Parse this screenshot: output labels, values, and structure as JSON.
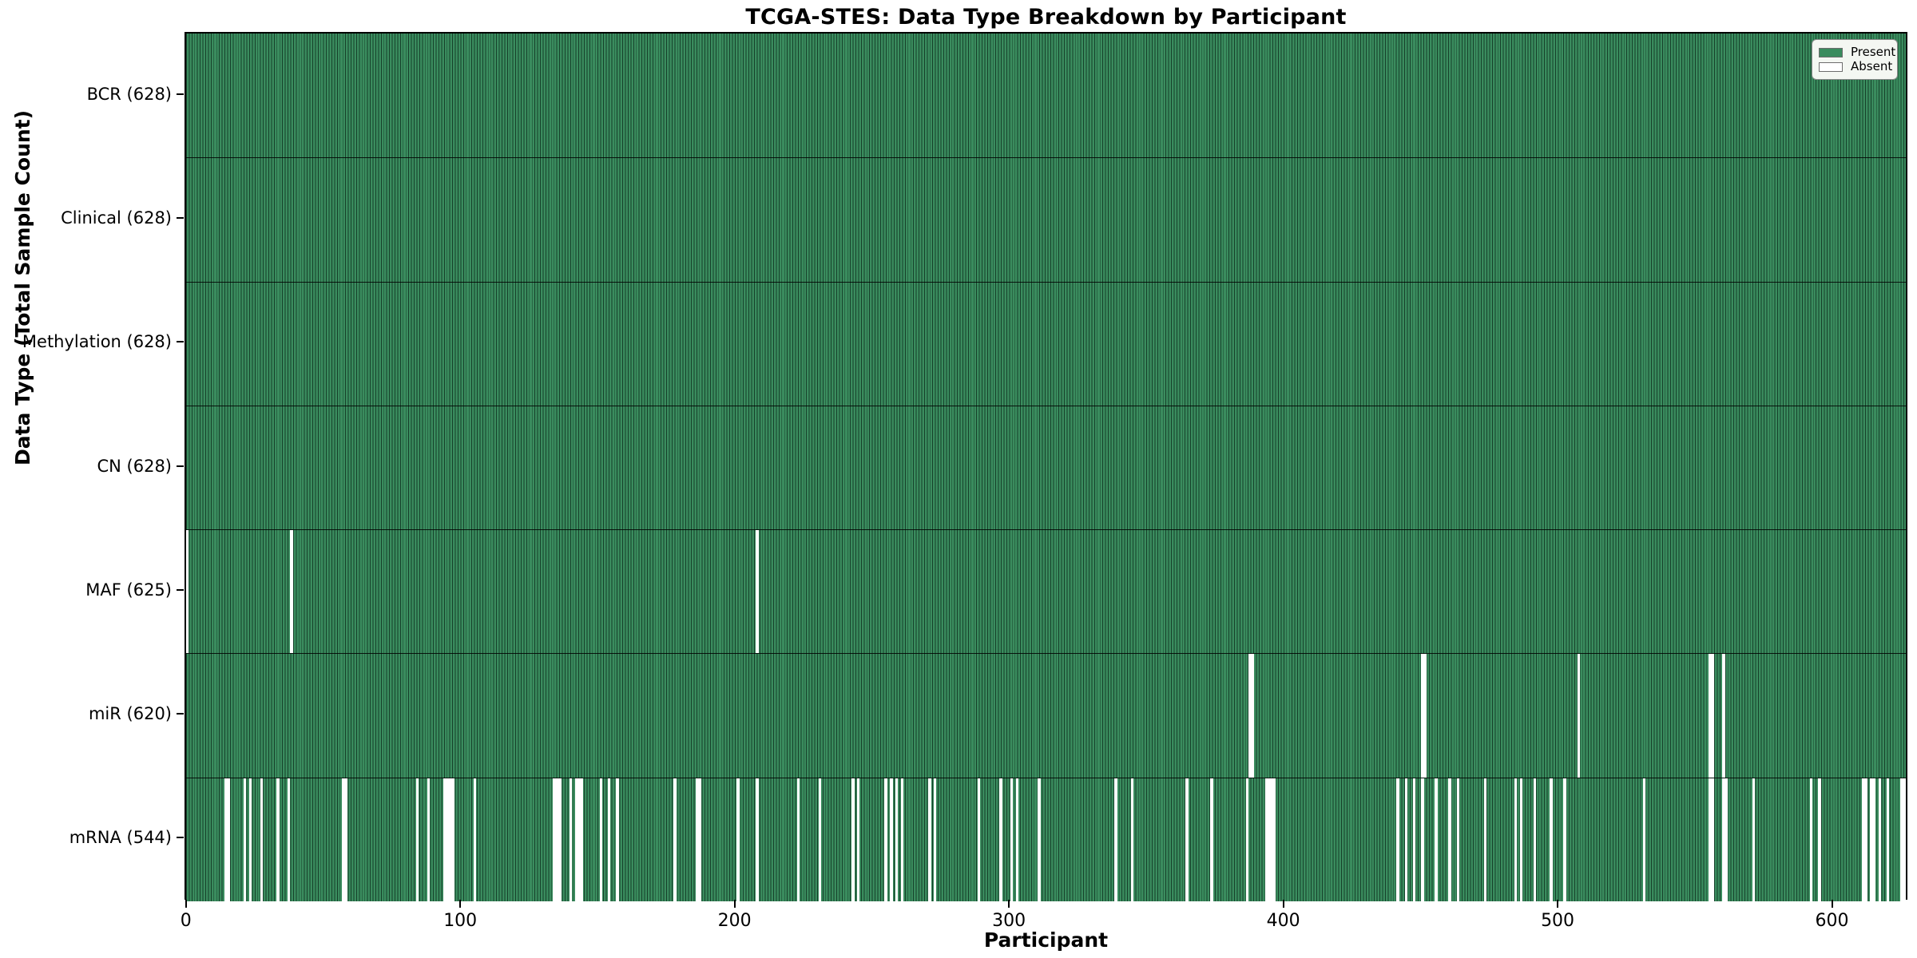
{
  "colors": {
    "present_fill": "#3a8c5e",
    "present_edge": "#16402a",
    "absent": "#ffffff",
    "axis": "#000000",
    "legend_bg": "#f4f7f2"
  },
  "chart_data": {
    "type": "heatmap",
    "title": "TCGA-STES: Data Type Breakdown by Participant",
    "xlabel": "Participant",
    "ylabel": "Data Type (Total Sample Count)",
    "n_participants": 628,
    "x_ticks": [
      0,
      100,
      200,
      300,
      400,
      500,
      600
    ],
    "legend": [
      {
        "label": "Present",
        "color": "#3a8c5e"
      },
      {
        "label": "Absent",
        "color": "#ffffff"
      }
    ],
    "rows": [
      {
        "name": "BCR",
        "label": "BCR (628)",
        "present_count": 628,
        "absent_participants": []
      },
      {
        "name": "Clinical",
        "label": "Clinical (628)",
        "present_count": 628,
        "absent_participants": []
      },
      {
        "name": "Methylation",
        "label": "Methylation (628)",
        "present_count": 628,
        "absent_participants": []
      },
      {
        "name": "CN",
        "label": "CN (628)",
        "present_count": 628,
        "absent_participants": []
      },
      {
        "name": "MAF",
        "label": "MAF (625)",
        "present_count": 625,
        "absent_participants": [
          0,
          38,
          208
        ]
      },
      {
        "name": "miR",
        "label": "miR (620)",
        "present_count": 620,
        "absent_participants": [
          388,
          389,
          451,
          452,
          508,
          556,
          557,
          561
        ]
      },
      {
        "name": "mRNA",
        "label": "mRNA (544)",
        "present_count": 544,
        "absent_participants": [
          14,
          15,
          21,
          23,
          27,
          33,
          37,
          57,
          58,
          84,
          88,
          94,
          95,
          96,
          97,
          105,
          134,
          135,
          136,
          140,
          142,
          143,
          144,
          151,
          154,
          157,
          178,
          186,
          187,
          201,
          208,
          223,
          231,
          243,
          245,
          255,
          257,
          259,
          261,
          271,
          273,
          289,
          297,
          301,
          303,
          311,
          339,
          345,
          365,
          374,
          387,
          394,
          395,
          396,
          397,
          442,
          445,
          448,
          451,
          456,
          461,
          464,
          474,
          485,
          487,
          492,
          498,
          503,
          532,
          556,
          557,
          561,
          562,
          572,
          593,
          596,
          612,
          613,
          615,
          616,
          618,
          621,
          626,
          627
        ]
      }
    ]
  }
}
